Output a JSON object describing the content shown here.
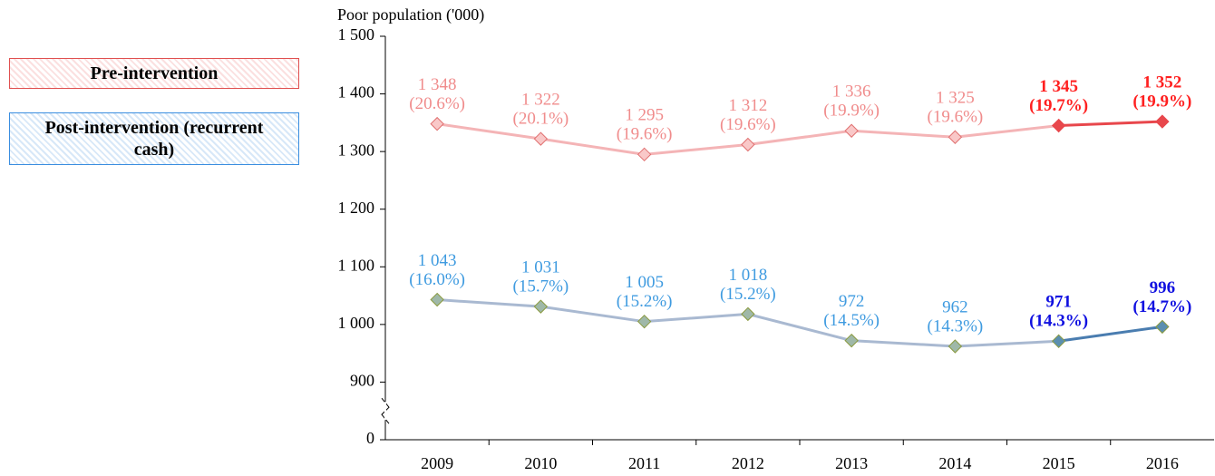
{
  "chart_data": {
    "type": "line",
    "y_axis_title": "Poor population ('000)",
    "categories": [
      "2009",
      "2010",
      "2011",
      "2012",
      "2013",
      "2014",
      "2015",
      "2016"
    ],
    "series": [
      {
        "name": "Pre-intervention",
        "color": "#f4b4b6",
        "emphasis_color": "#e8474c",
        "label_color": "#f08c8c",
        "emphasis_label_color": "#ff2020",
        "values": [
          1348,
          1322,
          1295,
          1312,
          1336,
          1325,
          1345,
          1352
        ],
        "value_labels": [
          "1 348",
          "1 322",
          "1 295",
          "1 312",
          "1 336",
          "1 325",
          "1 345",
          "1 352"
        ],
        "share_labels": [
          "(20.6%)",
          "(20.1%)",
          "(19.6%)",
          "(19.6%)",
          "(19.9%)",
          "(19.6%)",
          "(19.7%)",
          "(19.9%)"
        ],
        "emphasis": [
          false,
          false,
          false,
          false,
          false,
          false,
          true,
          true
        ]
      },
      {
        "name": "Post-intervention (recurrent cash)",
        "color": "#a9b9d1",
        "emphasis_color": "#4a7db0",
        "label_color": "#3f9be0",
        "emphasis_label_color": "#1010e0",
        "values": [
          1043,
          1031,
          1005,
          1018,
          972,
          962,
          971,
          996
        ],
        "value_labels": [
          "1 043",
          "1 031",
          "1 005",
          "1 018",
          "972",
          "962",
          "971",
          "996"
        ],
        "share_labels": [
          "(16.0%)",
          "(15.7%)",
          "(15.2%)",
          "(15.2%)",
          "(14.5%)",
          "(14.3%)",
          "(14.3%)",
          "(14.7%)"
        ],
        "emphasis": [
          false,
          false,
          false,
          false,
          false,
          false,
          true,
          true
        ]
      }
    ],
    "ylim": [
      0,
      1500
    ],
    "yticks": [
      0,
      900,
      {
        "value": 1000,
        "label": "1 000"
      },
      {
        "value": 1100,
        "label": "1 100"
      },
      {
        "value": 1200,
        "label": "1 200"
      },
      {
        "value": 1300,
        "label": "1 300"
      },
      {
        "value": 1400,
        "label": "1 400"
      },
      {
        "value": 1500,
        "label": "1 500"
      }
    ],
    "axis_break": true
  }
}
